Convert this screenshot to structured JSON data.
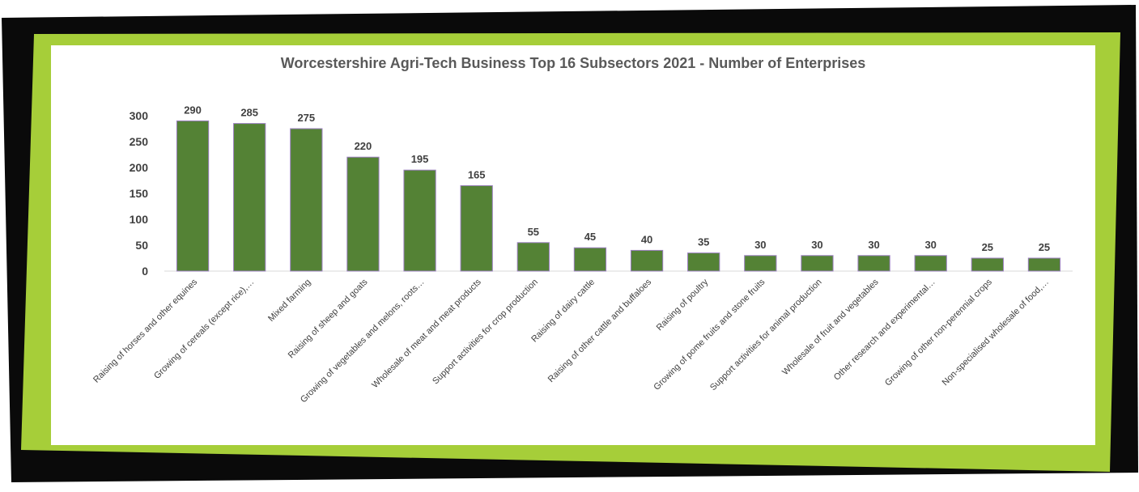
{
  "colors": {
    "frame_black": "#0a0a0a",
    "frame_green": "#a6ce39",
    "bar_fill": "#548235",
    "bar_stroke": "#9b7fc0",
    "axis": "#d9d9d9"
  },
  "chart_data": {
    "type": "bar",
    "title": "Worcestershire Agri-Tech Business Top 16 Subsectors 2021 - Number of Enterprises",
    "xlabel": "",
    "ylabel": "",
    "ylim": [
      0,
      300
    ],
    "yticks": [
      0,
      50,
      100,
      150,
      200,
      250,
      300
    ],
    "grid": false,
    "legend": "none",
    "categories": [
      "Raising of horses and other equines",
      "Growing of cereals (except rice),…",
      "Mixed farming",
      "Raising of sheep and goats",
      "Growing of vegetables and melons, roots…",
      "Wholesale of meat and meat products",
      "Support activities for crop production",
      "Raising of dairy cattle",
      "Raising of other cattle and buffaloes",
      "Raising of poultry",
      "Growing of pome fruits and stone fruits",
      "Support activities for animal production",
      "Wholesale of fruit and vegetables",
      "Other research and experimental…",
      "Growing of other non-perennial crops",
      "Non-specialised wholesale of food,…"
    ],
    "values": [
      290,
      285,
      275,
      220,
      195,
      165,
      55,
      45,
      40,
      35,
      30,
      30,
      30,
      30,
      25,
      25
    ]
  }
}
